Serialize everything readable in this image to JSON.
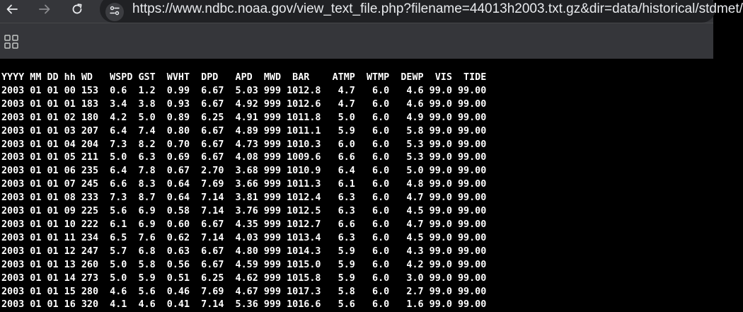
{
  "browser": {
    "url": "https://www.ndbc.noaa.gov/view_text_file.php?filename=44013h2003.txt.gz&dir=data/historical/stdmet/",
    "back_icon": "arrow-left-icon",
    "forward_icon": "arrow-right-icon",
    "reload_icon": "reload-icon",
    "site_info_icon": "tune-icon",
    "apps_icon": "apps-grid-icon"
  },
  "colors": {
    "chrome_bg": "#35363a",
    "omnibox_bg": "#202124",
    "page_bg": "#000000",
    "text": "#ffffff"
  },
  "file": {
    "header": "YYYY MM DD hh WD   WSPD GST  WVHT  DPD   APD  MWD  BAR    ATMP  WTMP  DEWP  VIS  TIDE",
    "rows": [
      "2003 01 01 00 153  0.6  1.2  0.99  6.67  5.03 999 1012.8   4.7   6.0   4.6 99.0 99.00",
      "2003 01 01 01 183  3.4  3.8  0.93  6.67  4.92 999 1012.6   4.7   6.0   4.6 99.0 99.00",
      "2003 01 01 02 180  4.2  5.0  0.89  6.25  4.91 999 1011.8   5.0   6.0   4.9 99.0 99.00",
      "2003 01 01 03 207  6.4  7.4  0.80  6.67  4.89 999 1011.1   5.9   6.0   5.8 99.0 99.00",
      "2003 01 01 04 204  7.3  8.2  0.70  6.67  4.73 999 1010.3   6.0   6.0   5.3 99.0 99.00",
      "2003 01 01 05 211  5.0  6.3  0.69  6.67  4.08 999 1009.6   6.6   6.0   5.3 99.0 99.00",
      "2003 01 01 06 235  6.4  7.8  0.67  2.70  3.68 999 1010.9   6.4   6.0   5.0 99.0 99.00",
      "2003 01 01 07 245  6.6  8.3  0.64  7.69  3.66 999 1011.3   6.1   6.0   4.8 99.0 99.00",
      "2003 01 01 08 233  7.3  8.7  0.64  7.14  3.81 999 1012.4   6.3   6.0   4.7 99.0 99.00",
      "2003 01 01 09 225  5.6  6.9  0.58  7.14  3.76 999 1012.5   6.3   6.0   4.5 99.0 99.00",
      "2003 01 01 10 222  6.1  6.9  0.60  6.67  4.35 999 1012.7   6.6   6.0   4.7 99.0 99.00",
      "2003 01 01 11 234  6.5  7.6  0.62  7.14  4.03 999 1013.4   6.3   6.0   4.5 99.0 99.00",
      "2003 01 01 12 247  5.7  6.8  0.63  6.67  4.80 999 1014.3   5.9   6.0   4.3 99.0 99.00",
      "2003 01 01 13 260  5.0  5.8  0.56  6.67  4.59 999 1015.0   5.9   6.0   4.2 99.0 99.00",
      "2003 01 01 14 273  5.0  5.9  0.51  6.25  4.62 999 1015.8   5.9   6.0   3.0 99.0 99.00",
      "2003 01 01 15 280  4.6  5.6  0.46  7.69  4.67 999 1017.3   5.8   6.0   2.7 99.0 99.00",
      "2003 01 01 16 320  4.1  4.6  0.41  7.14  5.36 999 1016.6   5.6   6.0   1.6 99.0 99.00"
    ]
  }
}
